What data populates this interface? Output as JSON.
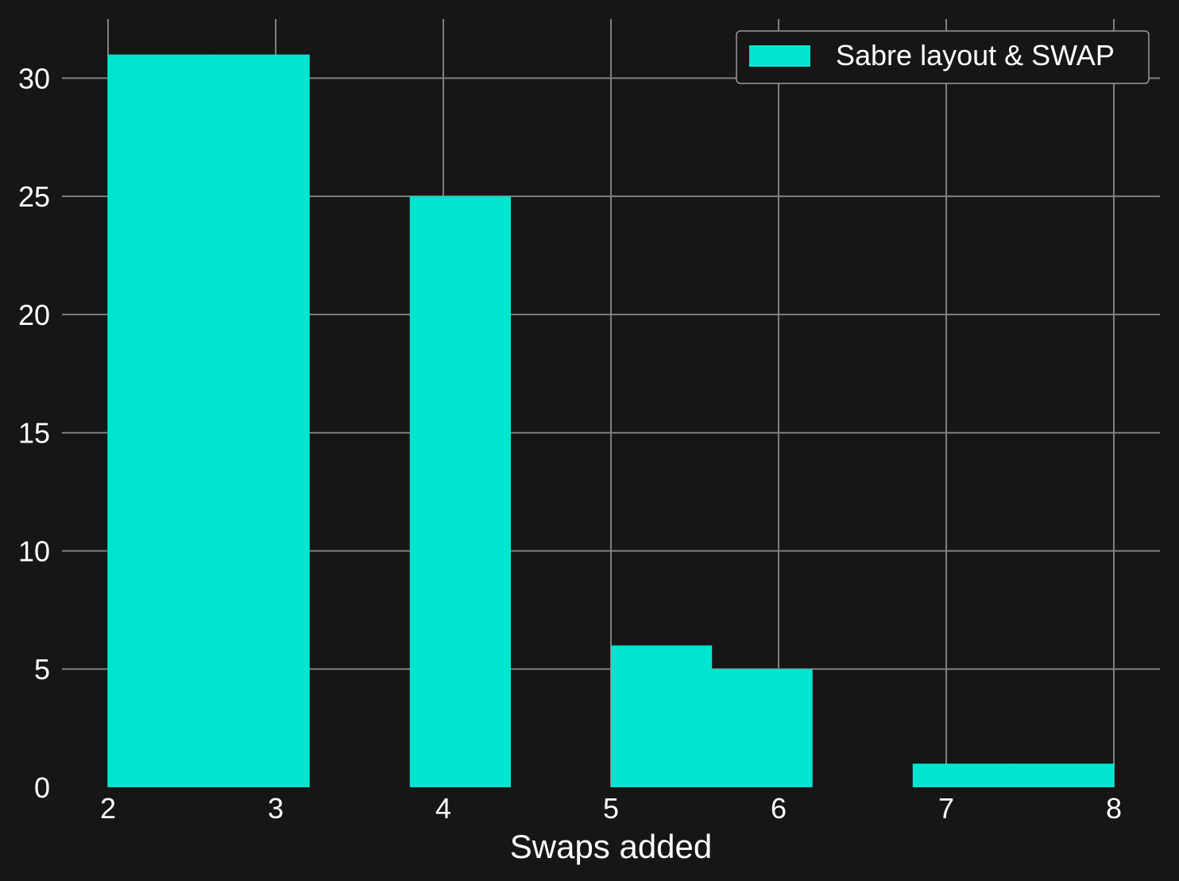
{
  "chart_data": {
    "type": "bar",
    "subtype": "histogram",
    "xlabel": "Swaps added",
    "ylabel": "",
    "xlim": [
      2,
      8
    ],
    "ylim": [
      0,
      32.5
    ],
    "xticks": [
      2,
      3,
      4,
      5,
      6,
      7,
      8
    ],
    "yticks": [
      0,
      5,
      10,
      15,
      20,
      25,
      30
    ],
    "grid": true,
    "legend": {
      "placement": "top-right",
      "entries": [
        "Sabre layout & SWAP"
      ]
    },
    "series": [
      {
        "name": "Sabre layout & SWAP",
        "color": "#00e5cf",
        "bins": [
          {
            "x0": 2.0,
            "x1": 2.6,
            "value": 31
          },
          {
            "x0": 2.6,
            "x1": 3.2,
            "value": 31
          },
          {
            "x0": 3.2,
            "x1": 3.8,
            "value": 0
          },
          {
            "x0": 3.8,
            "x1": 4.4,
            "value": 25
          },
          {
            "x0": 4.4,
            "x1": 5.0,
            "value": 0
          },
          {
            "x0": 5.0,
            "x1": 5.6,
            "value": 6
          },
          {
            "x0": 5.6,
            "x1": 6.2,
            "value": 5
          },
          {
            "x0": 6.2,
            "x1": 6.8,
            "value": 0
          },
          {
            "x0": 6.8,
            "x1": 7.4,
            "value": 1
          },
          {
            "x0": 7.4,
            "x1": 8.0,
            "value": 1
          }
        ]
      }
    ],
    "colors": {
      "background": "#161616",
      "grid": "#808080",
      "text": "#ffffff"
    }
  }
}
